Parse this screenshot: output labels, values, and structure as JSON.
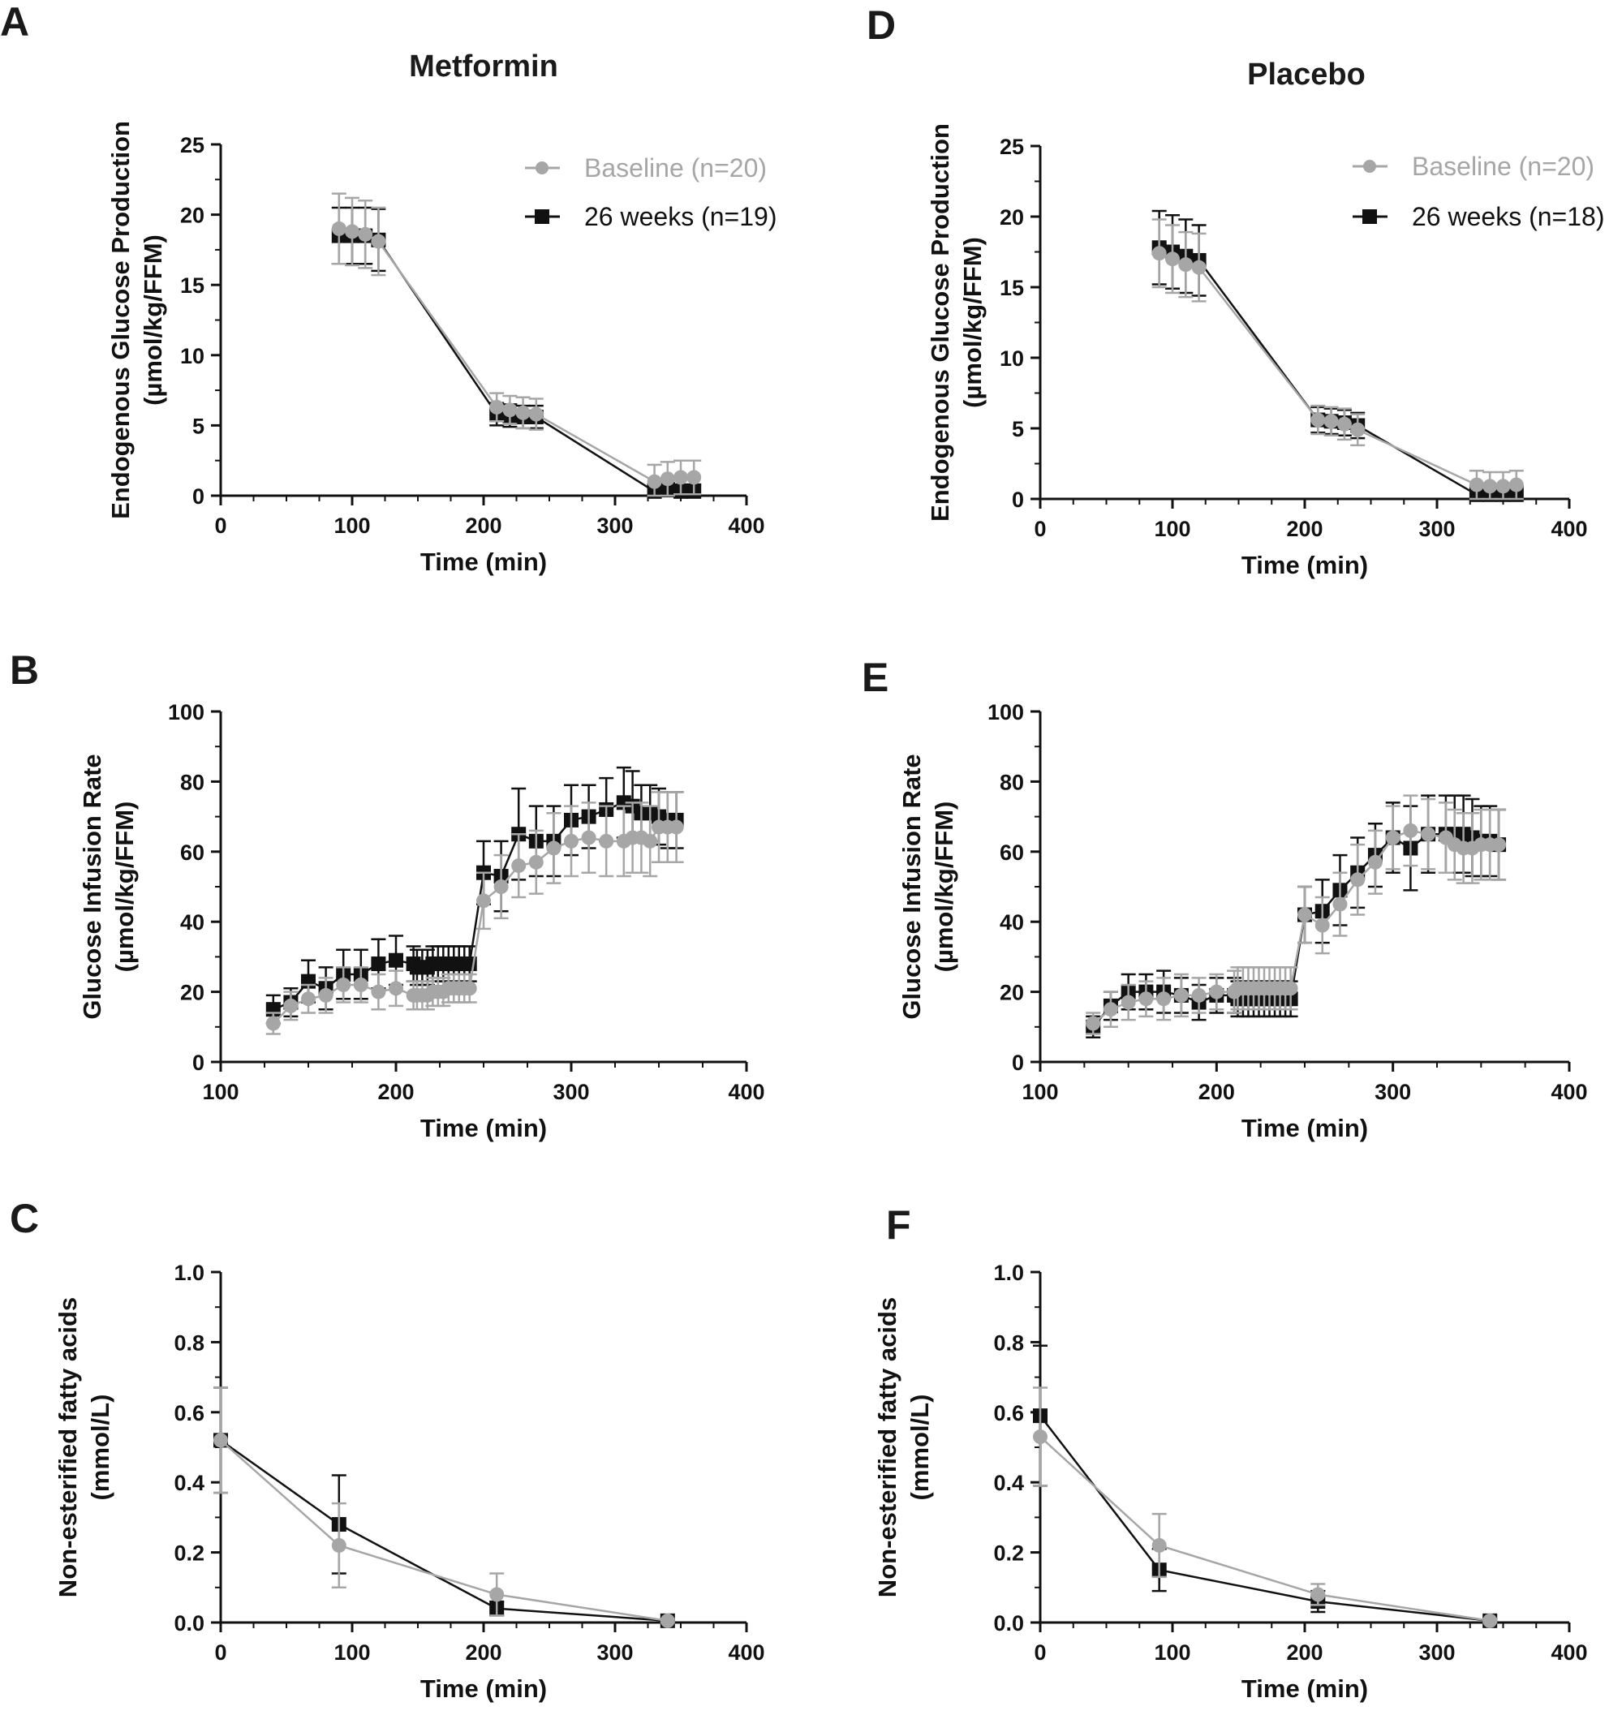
{
  "figure": {
    "column_titles": [
      "Metformin",
      "Placebo"
    ],
    "legend": {
      "baseline_label_left": "Baseline (n=20)",
      "week26_label_left": "26 weeks (n=19)",
      "baseline_label_right": "Baseline (n=20)",
      "week26_label_right": "26 weeks (n=18)"
    },
    "colors": {
      "baseline": "#a6a6a6",
      "week26": "#111111",
      "axis": "#111111"
    }
  },
  "chart_data": [
    {
      "id": "A",
      "letter": "A",
      "type": "line",
      "title": "Metformin",
      "xlabel": "Time (min)",
      "ylabel": [
        "Endogenous Glucose Production",
        "(µmol/kg/FFM)"
      ],
      "xlim": [
        0,
        400
      ],
      "ylim": [
        0,
        25
      ],
      "xticks": [
        0,
        100,
        200,
        300,
        400
      ],
      "yticks": [
        0,
        5,
        10,
        15,
        20,
        25
      ],
      "xtick_labels": [
        "0",
        "100",
        "200",
        "300",
        "400"
      ],
      "ytick_labels": [
        "0",
        "5",
        "10",
        "15",
        "20",
        "25"
      ],
      "legend": {
        "baseline": "Baseline (n=20)",
        "week26": "26 weeks (n=19)"
      },
      "series": [
        {
          "name": "26 weeks (n=19)",
          "kind": "week26",
          "x": [
            90,
            100,
            110,
            120,
            210,
            220,
            230,
            240,
            330,
            340,
            350,
            360
          ],
          "y": [
            18.5,
            18.5,
            18.5,
            18.2,
            5.8,
            5.7,
            5.6,
            5.6,
            0.3,
            0.4,
            0.3,
            0.3
          ],
          "err": [
            2.0,
            2.0,
            2.0,
            2.2,
            0.8,
            0.8,
            0.8,
            0.8,
            0.5,
            0.5,
            0.5,
            0.5
          ]
        },
        {
          "name": "Baseline (n=20)",
          "kind": "baseline",
          "x": [
            90,
            100,
            110,
            120,
            210,
            220,
            230,
            240,
            330,
            340,
            350,
            360
          ],
          "y": [
            19.0,
            18.8,
            18.6,
            18.1,
            6.3,
            6.1,
            5.9,
            5.8,
            1.0,
            1.2,
            1.3,
            1.3
          ],
          "err": [
            2.5,
            2.4,
            2.4,
            2.4,
            1.0,
            1.0,
            1.1,
            1.1,
            1.2,
            1.2,
            1.2,
            1.2
          ]
        }
      ]
    },
    {
      "id": "D",
      "letter": "D",
      "type": "line",
      "title": "Placebo",
      "xlabel": "Time (min)",
      "ylabel": [
        "Endogenous Glucose Production",
        "(µmol/kg/FFM)"
      ],
      "xlim": [
        0,
        400
      ],
      "ylim": [
        0,
        25
      ],
      "xticks": [
        0,
        100,
        200,
        300,
        400
      ],
      "yticks": [
        0,
        5,
        10,
        15,
        20,
        25
      ],
      "xtick_labels": [
        "0",
        "100",
        "200",
        "300",
        "400"
      ],
      "ytick_labels": [
        "0",
        "5",
        "10",
        "15",
        "20",
        "25"
      ],
      "legend": {
        "baseline": "Baseline (n=20)",
        "week26": "26 weeks (n=18)"
      },
      "series": [
        {
          "name": "26 weeks (n=18)",
          "kind": "week26",
          "x": [
            90,
            100,
            110,
            120,
            210,
            220,
            230,
            240,
            330,
            340,
            350,
            360
          ],
          "y": [
            17.8,
            17.5,
            17.2,
            16.9,
            5.6,
            5.5,
            5.4,
            5.2,
            0.3,
            0.3,
            0.3,
            0.3
          ],
          "err": [
            2.6,
            2.6,
            2.6,
            2.5,
            0.9,
            0.9,
            0.9,
            0.9,
            0.6,
            0.6,
            0.6,
            0.6
          ]
        },
        {
          "name": "Baseline (n=20)",
          "kind": "baseline",
          "x": [
            90,
            100,
            110,
            120,
            210,
            220,
            230,
            240,
            330,
            340,
            350,
            360
          ],
          "y": [
            17.4,
            17.0,
            16.6,
            16.4,
            5.6,
            5.5,
            5.3,
            4.9,
            1.0,
            0.9,
            0.9,
            1.0
          ],
          "err": [
            2.4,
            2.4,
            2.3,
            2.4,
            1.0,
            1.0,
            1.1,
            1.1,
            1.0,
            1.0,
            1.0,
            1.0
          ]
        }
      ]
    },
    {
      "id": "B",
      "letter": "B",
      "type": "line",
      "title": "",
      "xlabel": "Time (min)",
      "ylabel": [
        "Glucose Infusion Rate",
        "(µmol/kg/FFM)"
      ],
      "xlim": [
        100,
        400
      ],
      "ylim": [
        0,
        100
      ],
      "xticks": [
        100,
        200,
        300,
        400
      ],
      "yticks": [
        0,
        20,
        40,
        60,
        80,
        100
      ],
      "xtick_labels": [
        "100",
        "200",
        "300",
        "400"
      ],
      "ytick_labels": [
        "0",
        "20",
        "40",
        "60",
        "80",
        "100"
      ],
      "series": [
        {
          "name": "26 weeks (n=19)",
          "kind": "week26",
          "x": [
            130,
            140,
            150,
            160,
            170,
            180,
            190,
            200,
            210,
            212,
            215,
            218,
            221,
            224,
            227,
            230,
            233,
            236,
            239,
            242,
            250,
            260,
            270,
            280,
            290,
            300,
            310,
            320,
            330,
            335,
            340,
            345,
            350,
            355,
            360
          ],
          "y": [
            15,
            17,
            23,
            21,
            25,
            25,
            28,
            29,
            28,
            27,
            27,
            27,
            28,
            28,
            28,
            28,
            28,
            28,
            28,
            28,
            54,
            53,
            65,
            63,
            63,
            69,
            70,
            72,
            74,
            73,
            71,
            71,
            70,
            69,
            69
          ],
          "err": [
            4,
            4,
            6,
            6,
            7,
            7,
            7,
            7,
            5,
            5,
            5,
            5,
            5,
            5,
            5,
            5,
            5,
            5,
            5,
            5,
            9,
            10,
            13,
            10,
            10,
            10,
            9,
            9,
            10,
            10,
            8,
            8,
            8,
            8,
            8
          ]
        },
        {
          "name": "Baseline (n=20)",
          "kind": "baseline",
          "x": [
            130,
            140,
            150,
            160,
            170,
            180,
            190,
            200,
            210,
            212,
            215,
            218,
            221,
            224,
            227,
            230,
            233,
            236,
            239,
            242,
            250,
            260,
            270,
            280,
            290,
            300,
            310,
            320,
            330,
            335,
            340,
            345,
            350,
            355,
            360
          ],
          "y": [
            11,
            16,
            18,
            19,
            22,
            22,
            20,
            21,
            19,
            19,
            19,
            19,
            20,
            20,
            20,
            21,
            21,
            21,
            21,
            21,
            46,
            50,
            56,
            57,
            61,
            63,
            64,
            63,
            63,
            64,
            64,
            63,
            67,
            67,
            67
          ],
          "err": [
            3,
            4,
            4,
            5,
            5,
            5,
            5,
            5,
            4,
            4,
            4,
            4,
            4,
            4,
            4,
            4,
            4,
            4,
            4,
            4,
            8,
            9,
            9,
            9,
            10,
            10,
            10,
            10,
            10,
            10,
            10,
            10,
            10,
            10,
            10
          ]
        }
      ]
    },
    {
      "id": "E",
      "letter": "E",
      "type": "line",
      "title": "",
      "xlabel": "Time (min)",
      "ylabel": [
        "Glucose Infusion Rate",
        "(µmol/kg/FFM)"
      ],
      "xlim": [
        100,
        400
      ],
      "ylim": [
        0,
        100
      ],
      "xticks": [
        100,
        200,
        300,
        400
      ],
      "yticks": [
        0,
        20,
        40,
        60,
        80,
        100
      ],
      "xtick_labels": [
        "100",
        "200",
        "300",
        "400"
      ],
      "ytick_labels": [
        "0",
        "20",
        "40",
        "60",
        "80",
        "100"
      ],
      "series": [
        {
          "name": "26 weeks (n=18)",
          "kind": "week26",
          "x": [
            130,
            140,
            150,
            160,
            170,
            180,
            190,
            200,
            210,
            212,
            215,
            218,
            221,
            224,
            227,
            230,
            233,
            236,
            239,
            242,
            250,
            260,
            270,
            280,
            290,
            300,
            310,
            320,
            330,
            335,
            340,
            345,
            350,
            355,
            360
          ],
          "y": [
            10,
            16,
            20,
            20,
            20,
            19,
            17,
            19,
            19,
            18,
            18,
            18,
            18,
            18,
            18,
            18,
            18,
            18,
            18,
            18,
            42,
            43,
            49,
            54,
            59,
            64,
            61,
            65,
            65,
            65,
            65,
            64,
            63,
            63,
            62
          ],
          "err": [
            3,
            4,
            5,
            5,
            6,
            5,
            5,
            5,
            5,
            5,
            5,
            5,
            5,
            5,
            5,
            5,
            5,
            5,
            5,
            5,
            8,
            9,
            10,
            10,
            9,
            10,
            12,
            11,
            11,
            11,
            11,
            11,
            10,
            10,
            10
          ]
        },
        {
          "name": "Baseline (n=20)",
          "kind": "baseline",
          "x": [
            130,
            140,
            150,
            160,
            170,
            180,
            190,
            200,
            210,
            212,
            215,
            218,
            221,
            224,
            227,
            230,
            233,
            236,
            239,
            242,
            250,
            260,
            270,
            280,
            290,
            300,
            310,
            320,
            330,
            335,
            340,
            345,
            350,
            355,
            360
          ],
          "y": [
            11,
            15,
            17,
            18,
            18,
            19,
            19,
            20,
            20,
            21,
            21,
            21,
            21,
            21,
            21,
            21,
            21,
            21,
            21,
            21,
            42,
            39,
            45,
            52,
            57,
            64,
            66,
            65,
            64,
            62,
            61,
            61,
            62,
            62,
            62
          ],
          "err": [
            3,
            5,
            5,
            5,
            6,
            6,
            5,
            5,
            6,
            6,
            6,
            6,
            6,
            6,
            6,
            6,
            6,
            6,
            6,
            6,
            8,
            8,
            9,
            10,
            9,
            9,
            10,
            10,
            10,
            10,
            10,
            10,
            10,
            10,
            10
          ]
        }
      ]
    },
    {
      "id": "C",
      "letter": "C",
      "type": "line",
      "title": "",
      "xlabel": "Time (min)",
      "ylabel": [
        "Non-esterified fatty acids",
        "(mmol/L)"
      ],
      "xlim": [
        0,
        400
      ],
      "ylim": [
        0,
        1.0
      ],
      "xticks": [
        0,
        100,
        200,
        300,
        400
      ],
      "yticks": [
        0,
        0.2,
        0.4,
        0.6,
        0.8,
        1.0
      ],
      "xtick_labels": [
        "0",
        "100",
        "200",
        "300",
        "400"
      ],
      "ytick_labels": [
        "0.0",
        "0.2",
        "0.4",
        "0.6",
        "0.8",
        "1.0"
      ],
      "series": [
        {
          "name": "26 weeks (n=19)",
          "kind": "week26",
          "x": [
            0,
            90,
            210,
            340
          ],
          "y": [
            0.52,
            0.28,
            0.04,
            0.005
          ],
          "err": [
            0.15,
            0.14,
            0.02,
            0.005
          ]
        },
        {
          "name": "Baseline (n=20)",
          "kind": "baseline",
          "x": [
            0,
            90,
            210,
            340
          ],
          "y": [
            0.52,
            0.22,
            0.08,
            0.005
          ],
          "err": [
            0.15,
            0.12,
            0.06,
            0.005
          ]
        }
      ]
    },
    {
      "id": "F",
      "letter": "F",
      "type": "line",
      "title": "",
      "xlabel": "Time (min)",
      "ylabel": [
        "Non-esterified fatty acids",
        "(mmol/L)"
      ],
      "xlim": [
        0,
        400
      ],
      "ylim": [
        0,
        1.0
      ],
      "xticks": [
        0,
        100,
        200,
        300,
        400
      ],
      "yticks": [
        0,
        0.2,
        0.4,
        0.6,
        0.8,
        1.0
      ],
      "xtick_labels": [
        "0",
        "100",
        "200",
        "300",
        "400"
      ],
      "ytick_labels": [
        "0.0",
        "0.2",
        "0.4",
        "0.6",
        "0.8",
        "1.0"
      ],
      "series": [
        {
          "name": "26 weeks (n=18)",
          "kind": "week26",
          "x": [
            0,
            90,
            210,
            340
          ],
          "y": [
            0.59,
            0.15,
            0.06,
            0.005
          ],
          "err": [
            0.2,
            0.06,
            0.03,
            0.005
          ]
        },
        {
          "name": "Baseline (n=20)",
          "kind": "baseline",
          "x": [
            0,
            90,
            210,
            340
          ],
          "y": [
            0.53,
            0.22,
            0.08,
            0.005
          ],
          "err": [
            0.14,
            0.09,
            0.03,
            0.005
          ]
        }
      ]
    }
  ]
}
